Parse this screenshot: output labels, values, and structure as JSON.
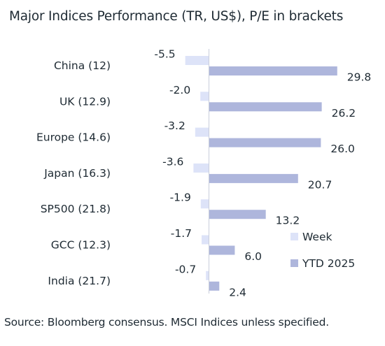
{
  "chart_data": {
    "type": "bar",
    "orientation": "horizontal",
    "title": "Major Indices Performance (TR, US$), P/E in brackets",
    "categories": [
      "China (12)",
      "UK (12.9)",
      "Europe (14.6)",
      "Japan (16.3)",
      "SP500 (21.8)",
      "GCC (12.3)",
      "India (21.7)"
    ],
    "series": [
      {
        "name": "Week",
        "values": [
          -5.5,
          -2.0,
          -3.2,
          -3.6,
          -1.9,
          -1.7,
          -0.7
        ],
        "color": "#dde3f8"
      },
      {
        "name": "YTD 2025",
        "values": [
          29.8,
          26.2,
          26.0,
          20.7,
          13.2,
          6.0,
          2.4
        ],
        "color": "#aeb6dc"
      }
    ],
    "value_labels": {
      "Week": [
        "-5.5",
        "-2.0",
        "-3.2",
        "-3.6",
        "-1.9",
        "-1.7",
        "-0.7"
      ],
      "YTD 2025": [
        "29.8",
        "26.2",
        "26.0",
        "20.7",
        "13.2",
        "6.0",
        "2.4"
      ]
    },
    "legend_position": "bottom-right",
    "grid": false,
    "source": "Source: Bloomberg consensus. MSCI Indices unless specified."
  }
}
